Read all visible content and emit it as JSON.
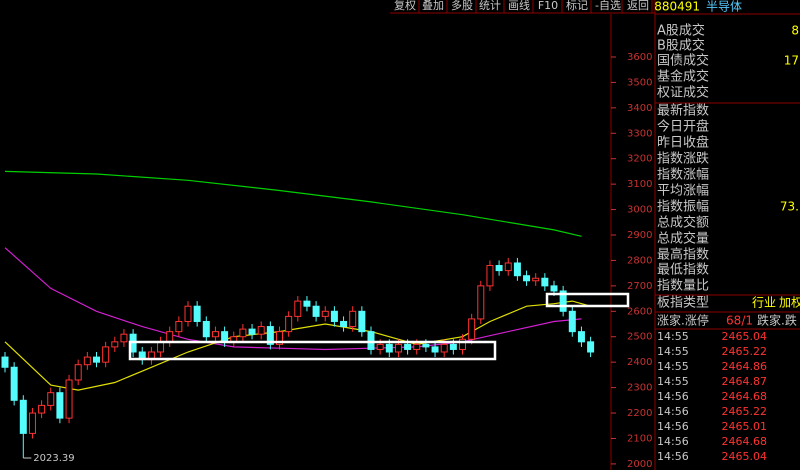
{
  "toolbar": [
    "复权",
    "叠加",
    "多股",
    "统计",
    "画线",
    "F10",
    "标记",
    "-自选",
    "返回"
  ],
  "chart_data": {
    "type": "candlestick",
    "open": [
      2420,
      2380,
      2250,
      2120,
      2200,
      2230,
      2280,
      2180,
      2330,
      2390,
      2420,
      2400,
      2460,
      2480,
      2510,
      2440,
      2410,
      2440,
      2480,
      2520,
      2560,
      2620,
      2560,
      2500,
      2520,
      2480,
      2500,
      2530,
      2510,
      2540,
      2470,
      2520,
      2580,
      2640,
      2620,
      2580,
      2600,
      2560,
      2540,
      2600,
      2520,
      2450,
      2470,
      2440,
      2470,
      2450,
      2470,
      2460,
      2440,
      2470,
      2450,
      2490,
      2570,
      2700,
      2780,
      2760,
      2790,
      2740,
      2720,
      2730,
      2700,
      2680,
      2600,
      2520,
      2480
    ],
    "high": [
      2440,
      2400,
      2270,
      2220,
      2250,
      2300,
      2300,
      2350,
      2410,
      2440,
      2440,
      2480,
      2500,
      2530,
      2530,
      2460,
      2460,
      2500,
      2540,
      2580,
      2640,
      2640,
      2580,
      2540,
      2540,
      2520,
      2550,
      2550,
      2560,
      2560,
      2540,
      2600,
      2660,
      2660,
      2640,
      2620,
      2620,
      2580,
      2620,
      2620,
      2540,
      2490,
      2490,
      2490,
      2490,
      2490,
      2490,
      2480,
      2490,
      2490,
      2510,
      2590,
      2720,
      2800,
      2800,
      2810,
      2810,
      2760,
      2750,
      2750,
      2720,
      2700,
      2620,
      2540,
      2500
    ],
    "low": [
      2360,
      2230,
      2023.39,
      2100,
      2180,
      2210,
      2160,
      2160,
      2310,
      2370,
      2380,
      2380,
      2440,
      2460,
      2420,
      2390,
      2390,
      2420,
      2460,
      2500,
      2540,
      2540,
      2480,
      2480,
      2460,
      2460,
      2480,
      2490,
      2490,
      2450,
      2450,
      2500,
      2560,
      2600,
      2560,
      2560,
      2540,
      2520,
      2520,
      2500,
      2430,
      2430,
      2420,
      2420,
      2430,
      2430,
      2440,
      2420,
      2420,
      2430,
      2430,
      2470,
      2550,
      2680,
      2740,
      2740,
      2720,
      2700,
      2700,
      2680,
      2660,
      2580,
      2500,
      2460,
      2420
    ],
    "close": [
      2380,
      2250,
      2120,
      2200,
      2230,
      2280,
      2180,
      2330,
      2390,
      2420,
      2400,
      2460,
      2480,
      2510,
      2440,
      2410,
      2440,
      2480,
      2520,
      2560,
      2620,
      2560,
      2500,
      2520,
      2480,
      2500,
      2530,
      2510,
      2540,
      2470,
      2520,
      2580,
      2640,
      2620,
      2580,
      2600,
      2560,
      2540,
      2600,
      2520,
      2450,
      2470,
      2440,
      2470,
      2450,
      2470,
      2460,
      2440,
      2470,
      2450,
      2490,
      2570,
      2700,
      2780,
      2760,
      2790,
      2740,
      2720,
      2730,
      2700,
      2680,
      2600,
      2520,
      2480,
      2440
    ],
    "up_color": "#ff3232",
    "down_color": "#54fcfc",
    "ylim": [
      1976,
      3769
    ],
    "yticks": [
      2000,
      2100,
      2200,
      2300,
      2400,
      2500,
      2600,
      2700,
      2800,
      2900,
      3000,
      3100,
      3200,
      3300,
      3400,
      3500,
      3600
    ],
    "lines": [
      {
        "color": "#00d000",
        "x": [
          0,
          10,
          20,
          30,
          40,
          50,
          60,
          63
        ],
        "values": [
          3150,
          3140,
          3115,
          3075,
          3030,
          2980,
          2920,
          2895
        ]
      },
      {
        "color": "#d020d0",
        "x": [
          0,
          5,
          10,
          15,
          20,
          25,
          30,
          35,
          40,
          45,
          50,
          55,
          60,
          63
        ],
        "values": [
          2850,
          2690,
          2600,
          2540,
          2490,
          2460,
          2455,
          2450,
          2455,
          2460,
          2480,
          2520,
          2560,
          2570
        ]
      },
      {
        "color": "#e0e000",
        "x": [
          0,
          5,
          8,
          12,
          16,
          20,
          25,
          30,
          35,
          40,
          45,
          50,
          53,
          57,
          60,
          62,
          64
        ],
        "values": [
          2480,
          2310,
          2290,
          2320,
          2380,
          2440,
          2500,
          2520,
          2550,
          2520,
          2470,
          2500,
          2560,
          2620,
          2630,
          2640,
          2620
        ]
      }
    ]
  },
  "panel": {
    "code": "880491",
    "name": "半导体",
    "rows": [
      {
        "label": "A股成交",
        "value": 8
      },
      {
        "label": "B股成交"
      },
      {
        "label": "国债成交",
        "value": 17
      },
      {
        "label": "基金成交"
      },
      {
        "label": "权证成交"
      },
      {
        "label": "最新指数"
      },
      {
        "label": "今日开盘"
      },
      {
        "label": "昨日收盘"
      },
      {
        "label": "指数涨跌"
      },
      {
        "label": "指数涨幅"
      },
      {
        "label": "平均涨幅"
      },
      {
        "label": "指数振幅",
        "value": "73."
      },
      {
        "label": "总成交额"
      },
      {
        "label": "总成交量"
      },
      {
        "label": "最高指数"
      },
      {
        "label": "最低指数"
      },
      {
        "label": "指数量比"
      }
    ],
    "board_type": {
      "label": "板指类型",
      "values": [
        "行业",
        "加权"
      ]
    },
    "updown": {
      "label": "涨家.涨停",
      "value": "68/1",
      "extra": "跌家.跌"
    },
    "ticks": {
      "times": [
        "14:55",
        "14:55",
        "14:55",
        "14:55",
        "14:56",
        "14:56",
        "14:56",
        "14:56",
        "14:56"
      ],
      "prices": [
        2465.04,
        2465.22,
        2464.86,
        2464.87,
        2464.68,
        2465.22,
        2465.01,
        2464.68,
        2465.04
      ]
    }
  }
}
